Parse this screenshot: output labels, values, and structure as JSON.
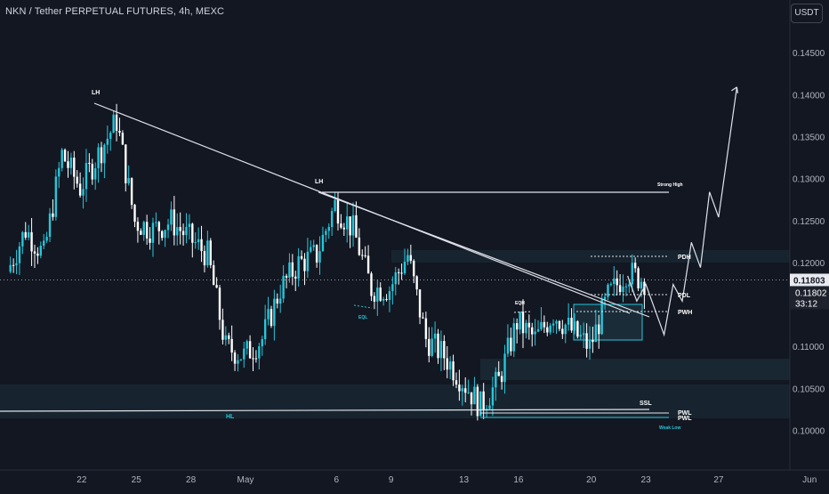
{
  "header": {
    "title": "NKN / Tether PERPETUAL FUTURES, 4h, MEXC",
    "currency": "USDT"
  },
  "colors": {
    "background": "#131722",
    "candle": "#26c6da",
    "candle_down": "#ffffff",
    "line": "#e0e3eb",
    "zone": "#1f3b48",
    "axis_text": "#b2b5be",
    "price_tag_bg": "#e8eaf0",
    "countdown_bg": "#1e222d"
  },
  "chart_data": {
    "type": "line",
    "title": "NKN / Tether PERPETUAL FUTURES, 4h, MEXC",
    "xlabel": "",
    "ylabel": "",
    "ylim": [
      0.0962,
      0.1534
    ],
    "grid": false,
    "x_tick_labels": [
      "22",
      "25",
      "28",
      "May",
      "6",
      "9",
      "13",
      "16",
      "20",
      "23",
      "27",
      "Jun"
    ],
    "x_ticks": [
      "Apr 22",
      "Apr 25",
      "Apr 28",
      "May 1",
      "May 6",
      "May 9",
      "May 13",
      "May 16",
      "May 20",
      "May 23",
      "May 27",
      "Jun 1"
    ],
    "y_ticks": [
      0.1,
      0.105,
      0.11,
      0.115,
      0.12,
      0.125,
      0.13,
      0.135,
      0.14,
      0.145
    ],
    "y_tick_labels": [
      "0.10000",
      "0.10500",
      "0.11000",
      "0.11500",
      "0.12000",
      "0.12500",
      "0.13000",
      "0.13500",
      "0.14000",
      "0.14500"
    ],
    "series": [
      {
        "type": "candlestick-approx",
        "x": [
          "Apr 18",
          "Apr 19",
          "Apr 20",
          "Apr 21",
          "Apr 22",
          "Apr 23",
          "Apr 24",
          "Apr 25",
          "Apr 26",
          "Apr 27",
          "Apr 28",
          "Apr 29",
          "Apr 30",
          "May 1",
          "May 2",
          "May 3",
          "May 4",
          "May 5",
          "May 6",
          "May 7",
          "May 8",
          "May 9",
          "May 10",
          "May 11",
          "May 12",
          "May 13",
          "May 14",
          "May 15",
          "May 16",
          "May 17",
          "May 18",
          "May 19",
          "May 20",
          "May 21",
          "May 22",
          "May 23"
        ],
        "values": [
          0.119,
          0.124,
          0.121,
          0.133,
          0.129,
          0.133,
          0.137,
          0.125,
          0.124,
          0.125,
          0.123,
          0.121,
          0.11,
          0.109,
          0.111,
          0.117,
          0.12,
          0.121,
          0.127,
          0.124,
          0.117,
          0.117,
          0.121,
          0.111,
          0.109,
          0.106,
          0.103,
          0.106,
          0.113,
          0.111,
          0.114,
          0.112,
          0.11,
          0.116,
          0.119,
          0.118
        ]
      },
      {
        "name": "projection",
        "type": "line",
        "x": [
          "May 22",
          "May 22.5",
          "May 23",
          "May 23.5",
          "May 24",
          "May 24.5",
          "May 25",
          "May 25.5",
          "May 26",
          "May 26.5",
          "May 27",
          "May 28"
        ],
        "values": [
          0.1185,
          0.1155,
          0.1175,
          0.1145,
          0.1115,
          0.1175,
          0.1155,
          0.1225,
          0.1195,
          0.1285,
          0.1255,
          0.141
        ]
      }
    ],
    "current_price": "0.11803",
    "last_price": "0.11802",
    "countdown": "33:12",
    "levels": [
      {
        "label": "Strong High",
        "y": 0.1283
      },
      {
        "label": "PDH",
        "y": 0.1206
      },
      {
        "label": "PDL",
        "y": 0.1164
      },
      {
        "label": "PWH",
        "y": 0.1142
      },
      {
        "label": "SSL",
        "y": 0.1025
      },
      {
        "label": "PWL",
        "y": 0.1022
      },
      {
        "label": "PWL",
        "y": 0.1015
      },
      {
        "label": "Weak Low",
        "y": 0.1005
      }
    ],
    "annotations": [
      "LH",
      "LH",
      "HL",
      "EQL",
      "EQH"
    ]
  }
}
